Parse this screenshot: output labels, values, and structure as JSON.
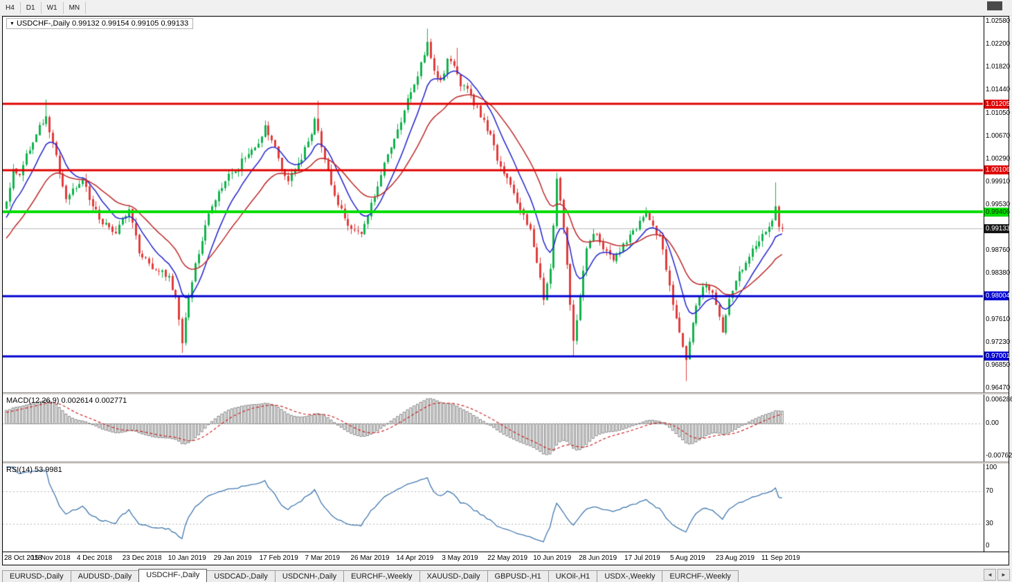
{
  "toolbar": {
    "timeframes": [
      "H4",
      "D1",
      "W1",
      "MN"
    ]
  },
  "icons": {
    "collapse": "▼",
    "scroll_left": "◄",
    "scroll_right": "►"
  },
  "chart": {
    "symbol": "USDCHF-,Daily",
    "ohlc_text": "0.99132 0.99154 0.99105 0.99133",
    "current_price": 0.99133,
    "price_axis_ticks": [
      "1.02580",
      "1.02200",
      "1.01820",
      "1.01440",
      "1.01050",
      "1.00670",
      "1.00290",
      "0.99910",
      "0.99530",
      "0.98760",
      "0.98380",
      "0.97610",
      "0.97230",
      "0.96850",
      "0.96470"
    ],
    "price_tags": [
      {
        "label": "1.01205",
        "price": 1.01205,
        "bg": "#e00000",
        "fg": "#ffffff"
      },
      {
        "label": "1.00106",
        "price": 1.00106,
        "bg": "#e00000",
        "fg": "#ffffff"
      },
      {
        "label": "0.99406",
        "price": 0.99406,
        "bg": "#00dd00",
        "fg": "#103300"
      },
      {
        "label": "0.99133",
        "price": 0.99133,
        "bg": "#151515",
        "fg": "#ffffff"
      },
      {
        "label": "0.98004",
        "price": 0.98004,
        "bg": "#0000d0",
        "fg": "#ffffff"
      },
      {
        "label": "0.97001",
        "price": 0.97001,
        "bg": "#0000d0",
        "fg": "#ffffff"
      }
    ],
    "levels": [
      {
        "price": 1.01205,
        "color": "#e00000",
        "width": 3
      },
      {
        "price": 1.00106,
        "color": "#e00000",
        "width": 3
      },
      {
        "price": 0.99406,
        "color": "#00dd00",
        "width": 4
      },
      {
        "price": 0.98004,
        "color": "#0000d0",
        "width": 3
      },
      {
        "price": 0.97001,
        "color": "#0000d0",
        "width": 3
      }
    ]
  },
  "macd": {
    "label": "MACD(12,26,9)",
    "values": "0.002614 0.002771",
    "axis_top": "0.006286",
    "axis_zero": "0.00",
    "axis_bottom": "-0.00762"
  },
  "rsi": {
    "label": "RSI(14)",
    "value": "53.9981",
    "axis": [
      "100",
      "70",
      "30",
      "0"
    ],
    "upper": 70,
    "lower": 30
  },
  "tabs": {
    "items": [
      {
        "label": "EURUSD-,Daily",
        "active": false
      },
      {
        "label": "AUDUSD-,Daily",
        "active": false
      },
      {
        "label": "USDCHF-,Daily",
        "active": true
      },
      {
        "label": "USDCAD-,Daily",
        "active": false
      },
      {
        "label": "USDCNH-,Daily",
        "active": false
      },
      {
        "label": "EURCHF-,Weekly",
        "active": false
      },
      {
        "label": "XAUUSD-,Daily",
        "active": false
      },
      {
        "label": "GBPUSD-,H1",
        "active": false
      },
      {
        "label": "UKOil-,H1",
        "active": false
      },
      {
        "label": "USDX-,Weekly",
        "active": false
      },
      {
        "label": "EURCHF-,Weekly",
        "active": false
      }
    ]
  },
  "chart_data": {
    "type": "candlestick",
    "symbol": "USDCHF",
    "timeframe": "Daily",
    "title": "USDCHF-,Daily 0.99132 0.99154 0.99105 0.99133",
    "x_labels": [
      "28 Oct 2018",
      "15 Nov 2018",
      "4 Dec 2018",
      "23 Dec 2018",
      "10 Jan 2019",
      "29 Jan 2019",
      "17 Feb 2019",
      "7 Mar 2019",
      "26 Mar 2019",
      "14 Apr 2019",
      "3 May 2019",
      "22 May 2019",
      "10 Jun 2019",
      "28 Jun 2019",
      "17 Jul 2019",
      "5 Aug 2019",
      "23 Aug 2019",
      "11 Sep 2019"
    ],
    "candle_count": 235,
    "price_range": [
      0.9647,
      1.0258
    ],
    "last_close": 0.99133,
    "levels": [
      1.01205,
      1.00106,
      0.99406,
      0.98004,
      0.97001
    ],
    "price_path_anchors": [
      [
        0,
        0.9958
      ],
      [
        2,
        1.0012
      ],
      [
        4,
        1.0002
      ],
      [
        6,
        1.0038
      ],
      [
        9,
        1.007
      ],
      [
        12,
        1.01
      ],
      [
        14,
        1.0056
      ],
      [
        16,
        1.0004
      ],
      [
        18,
        0.9962
      ],
      [
        21,
        0.998
      ],
      [
        23,
        0.9996
      ],
      [
        26,
        0.995
      ],
      [
        28,
        0.9928
      ],
      [
        31,
        0.9915
      ],
      [
        33,
        0.9905
      ],
      [
        35,
        0.993
      ],
      [
        37,
        0.9945
      ],
      [
        40,
        0.9872
      ],
      [
        43,
        0.9855
      ],
      [
        46,
        0.9842
      ],
      [
        49,
        0.9834
      ],
      [
        51,
        0.98
      ],
      [
        53,
        0.9722
      ],
      [
        55,
        0.9798
      ],
      [
        57,
        0.9855
      ],
      [
        59,
        0.9892
      ],
      [
        61,
        0.9938
      ],
      [
        63,
        0.996
      ],
      [
        66,
        0.9992
      ],
      [
        69,
        1.0008
      ],
      [
        72,
        1.003
      ],
      [
        75,
        1.0048
      ],
      [
        78,
        1.0085
      ],
      [
        80,
        1.006
      ],
      [
        82,
        1.003
      ],
      [
        85,
        0.9992
      ],
      [
        88,
        1.0022
      ],
      [
        91,
        1.0058
      ],
      [
        93,
        1.0096
      ],
      [
        94,
        1.0076
      ],
      [
        96,
        1.0028
      ],
      [
        98,
        0.9986
      ],
      [
        100,
        0.9952
      ],
      [
        102,
        0.993
      ],
      [
        105,
        0.991
      ],
      [
        107,
        0.9904
      ],
      [
        110,
        0.9956
      ],
      [
        113,
        1.0002
      ],
      [
        116,
        1.0048
      ],
      [
        119,
        1.009
      ],
      [
        122,
        1.014
      ],
      [
        125,
        1.019
      ],
      [
        127,
        1.0224
      ],
      [
        129,
        1.0176
      ],
      [
        131,
        1.016
      ],
      [
        133,
        1.0196
      ],
      [
        135,
        1.0184
      ],
      [
        137,
        1.015
      ],
      [
        139,
        1.0146
      ],
      [
        141,
        1.0118
      ],
      [
        144,
        1.0094
      ],
      [
        146,
        1.007
      ],
      [
        148,
        1.0026
      ],
      [
        150,
        1.0004
      ],
      [
        152,
        0.9986
      ],
      [
        154,
        0.9956
      ],
      [
        156,
        0.9936
      ],
      [
        158,
        0.9912
      ],
      [
        160,
        0.9856
      ],
      [
        162,
        0.9794
      ],
      [
        164,
        0.9846
      ],
      [
        166,
        0.9996
      ],
      [
        168,
        0.9914
      ],
      [
        170,
        0.9786
      ],
      [
        171,
        0.9726
      ],
      [
        173,
        0.98
      ],
      [
        175,
        0.988
      ],
      [
        177,
        0.9904
      ],
      [
        179,
        0.989
      ],
      [
        181,
        0.9876
      ],
      [
        183,
        0.986
      ],
      [
        185,
        0.9874
      ],
      [
        187,
        0.989
      ],
      [
        189,
        0.991
      ],
      [
        191,
        0.9926
      ],
      [
        193,
        0.994
      ],
      [
        195,
        0.9918
      ],
      [
        197,
        0.99
      ],
      [
        199,
        0.9844
      ],
      [
        201,
        0.9786
      ],
      [
        203,
        0.974
      ],
      [
        205,
        0.9694
      ],
      [
        207,
        0.9756
      ],
      [
        209,
        0.98
      ],
      [
        211,
        0.982
      ],
      [
        213,
        0.9806
      ],
      [
        214,
        0.9786
      ],
      [
        216,
        0.974
      ],
      [
        218,
        0.9796
      ],
      [
        220,
        0.9826
      ],
      [
        222,
        0.9844
      ],
      [
        224,
        0.9866
      ],
      [
        226,
        0.9884
      ],
      [
        228,
        0.9904
      ],
      [
        230,
        0.9916
      ],
      [
        231,
        0.9926
      ],
      [
        232,
        0.995
      ],
      [
        233,
        0.9916
      ],
      [
        234,
        0.99133
      ]
    ],
    "wick_overrides": {
      "12": {
        "high": 1.0128
      },
      "53": {
        "low": 0.9706
      },
      "94": {
        "high": 1.0126
      },
      "127": {
        "high": 1.0246
      },
      "136": {
        "high": 1.0214
      },
      "166": {
        "high": 1.0006
      },
      "171": {
        "low": 0.9701
      },
      "205": {
        "low": 0.9659
      },
      "232": {
        "high": 0.999
      }
    },
    "indicators": {
      "ma_fast": {
        "period": 10,
        "color": "#2b2bd0"
      },
      "ma_slow": {
        "period": 25,
        "color": "#c03030"
      },
      "macd": {
        "fast": 12,
        "slow": 26,
        "signal": 9,
        "hist_fill": "#f0f0f0",
        "hist_stroke": "#858585",
        "signal_color": "#cc2222"
      },
      "rsi": {
        "period": 14,
        "color": "#3f76ad"
      }
    },
    "colors": {
      "bull": "#10b24c",
      "bear": "#e13b3b",
      "grid_current": "#bbbbbb"
    }
  }
}
